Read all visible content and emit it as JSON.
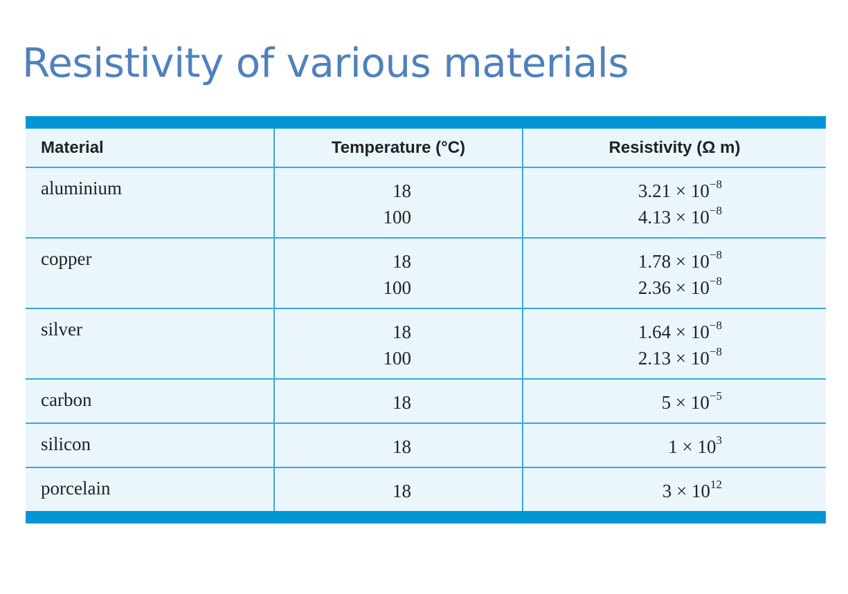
{
  "title": "Resistivity of various materials",
  "table": {
    "headers": {
      "material": "Material",
      "temperature": "Temperature (°C)",
      "resistivity": "Resistivity (Ω m)"
    },
    "rows": [
      {
        "material": "aluminium",
        "temps": [
          "18",
          "100"
        ],
        "res": [
          {
            "mantissa": "3.21 × 10",
            "exp": "−8"
          },
          {
            "mantissa": "4.13 × 10",
            "exp": "−8"
          }
        ]
      },
      {
        "material": "copper",
        "temps": [
          "18",
          "100"
        ],
        "res": [
          {
            "mantissa": "1.78 × 10",
            "exp": "−8"
          },
          {
            "mantissa": "2.36 × 10",
            "exp": "−8"
          }
        ]
      },
      {
        "material": "silver",
        "temps": [
          "18",
          "100"
        ],
        "res": [
          {
            "mantissa": "1.64 × 10",
            "exp": "−8"
          },
          {
            "mantissa": "2.13 × 10",
            "exp": "−8"
          }
        ]
      },
      {
        "material": "carbon",
        "temps": [
          "18"
        ],
        "res": [
          {
            "mantissa": "5 × 10",
            "exp": "−5"
          }
        ]
      },
      {
        "material": "silicon",
        "temps": [
          "18"
        ],
        "res": [
          {
            "mantissa": "1 × 10",
            "exp": "3"
          }
        ]
      },
      {
        "material": "porcelain",
        "temps": [
          "18"
        ],
        "res": [
          {
            "mantissa": "3 × 10",
            "exp": "12"
          }
        ]
      }
    ]
  }
}
